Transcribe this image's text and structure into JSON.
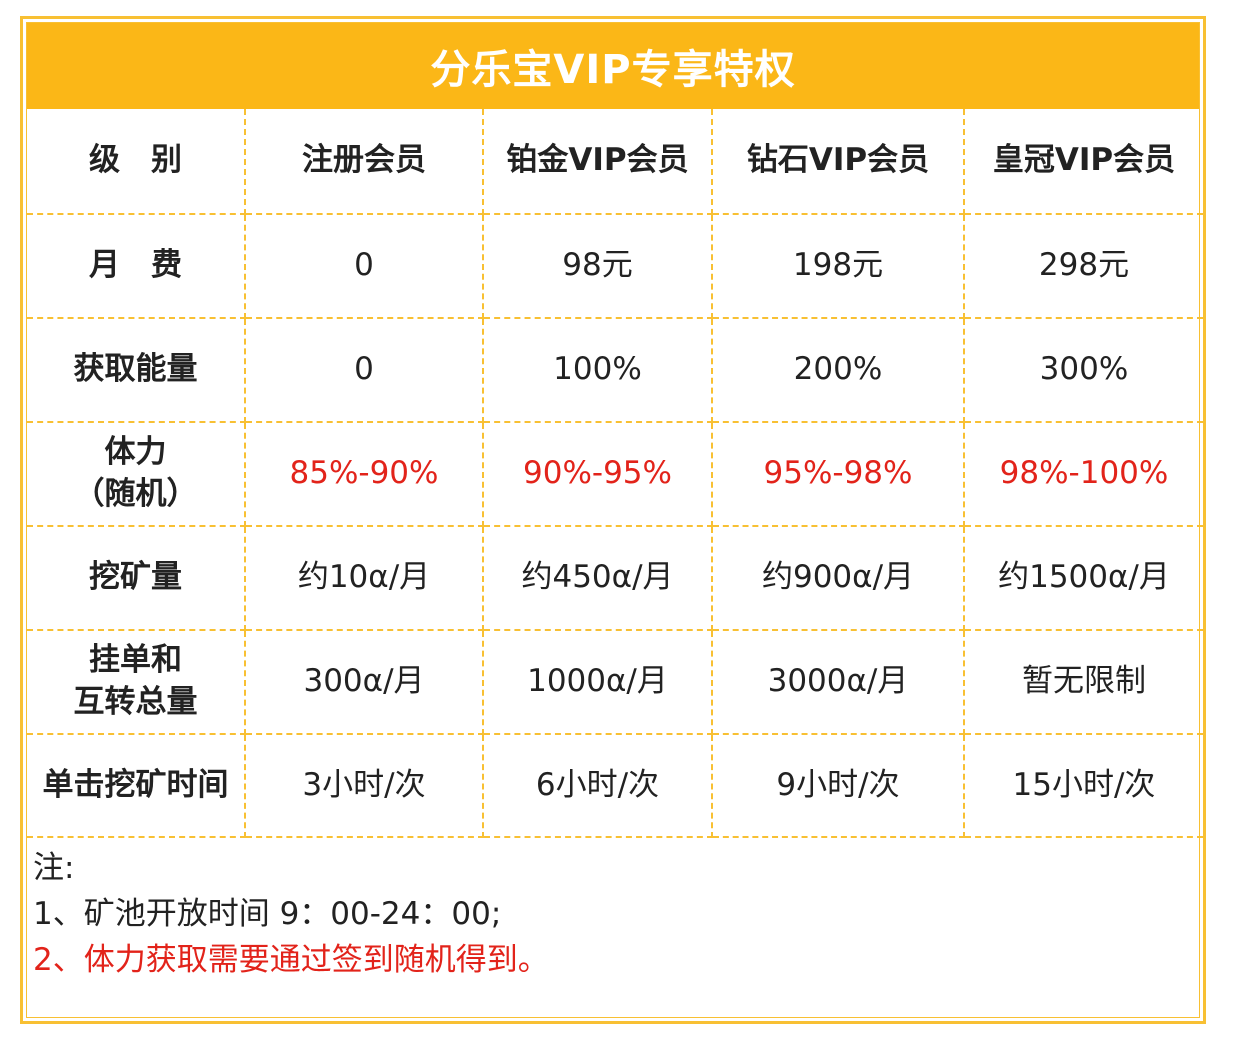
{
  "title": "分乐宝VIP专享特权",
  "columns": [
    "级　别",
    "注册会员",
    "铂金VIP会员",
    "钻石VIP会员",
    "皇冠VIP会员"
  ],
  "rows": [
    {
      "label_line1": "月　费",
      "label_line2": "",
      "values": [
        "0",
        "98元",
        "198元",
        "298元"
      ]
    },
    {
      "label_line1": "获取能量",
      "label_line2": "",
      "values": [
        "0",
        "100%",
        "200%",
        "300%"
      ]
    },
    {
      "label_line1": "体力",
      "label_line2": "（随机）",
      "values": [
        "85%-90%",
        "90%-95%",
        "95%-98%",
        "98%-100%"
      ],
      "highlight_color": "#e2231a"
    },
    {
      "label_line1": "挖矿量",
      "label_line2": "",
      "values": [
        "约10α/月",
        "约450α/月",
        "约900α/月",
        "约1500α/月"
      ]
    },
    {
      "label_line1": "挂单和",
      "label_line2": "互转总量",
      "values": [
        "300α/月",
        "1000α/月",
        "3000α/月",
        "暂无限制"
      ]
    },
    {
      "label_line1": "单击挖矿时间",
      "label_line2": "",
      "values": [
        "3小时/次",
        "6小时/次",
        "9小时/次",
        "15小时/次"
      ]
    }
  ],
  "notes": {
    "heading": "注:",
    "line1": "1、矿池开放时间 9：00-24：00;",
    "line2": "2、体力获取需要通过签到随机得到。"
  },
  "colors": {
    "accent": "#fbb717",
    "border": "#f8c033",
    "highlight": "#e2231a"
  }
}
